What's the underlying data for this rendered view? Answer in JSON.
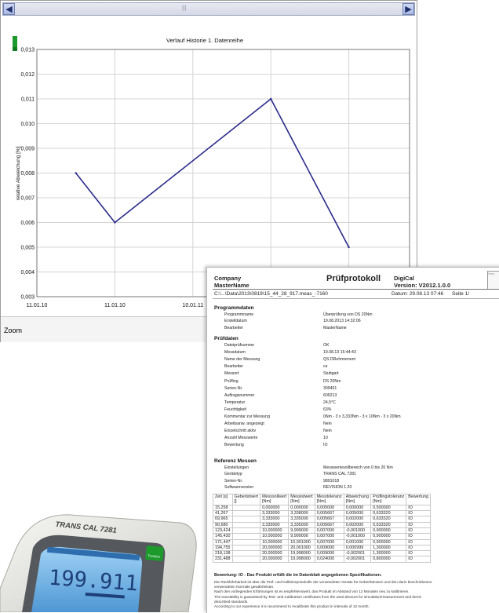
{
  "chart_window": {
    "scroll_grip": "|||",
    "zoom_label": "Zoom",
    "status_indicator_color": "#1c9a2c"
  },
  "chart_data": {
    "type": "line",
    "title": "Verlauf Historie 1. Datenreihe",
    "xlabel": "",
    "ylabel": "relative Abweichung [%]",
    "ylim": [
      0.003,
      0.013
    ],
    "y_ticks": [
      "0,013",
      "0,012",
      "0,011",
      "0,010",
      "0,009",
      "0,008",
      "0,007",
      "0,006",
      "0,005",
      "0,004",
      "0,003"
    ],
    "x_ticks": [
      "11.01.10",
      "11.01.10",
      "10.01.11"
    ],
    "series": [
      {
        "color": "#2a2a8c",
        "points": [
          {
            "x": 0.5,
            "y": 0.008
          },
          {
            "x": 1.0,
            "y": 0.006
          },
          {
            "x": 3.0,
            "y": 0.011
          },
          {
            "x": 4.0,
            "y": 0.005
          }
        ]
      }
    ],
    "grid": true
  },
  "report": {
    "company": "Company",
    "mastername": "MasterName",
    "title": "Prüfprotokoll",
    "digical": "DigiCal",
    "version": "Version: V2012.1.0.0",
    "logo_text": "Vers",
    "path": "C:\\...\\Data\\2013\\0819\\15_44_28_917.meas_-7160",
    "date": "Datum: 29.08.13 07:46",
    "page": "Seite 1/",
    "programmdaten": {
      "title": "Programmdaten",
      "rows": [
        {
          "label": "Programmname",
          "value": "Überprüfung von DS 20Nm"
        },
        {
          "label": "Erstelldatum",
          "value": "19.08.2013 14:32:06"
        },
        {
          "label": "Bearbeiter",
          "value": "MasterName"
        }
      ]
    },
    "pruefdaten": {
      "title": "Prüfdaten",
      "rows": [
        {
          "label": "Dateiprüfsumme",
          "value": "OK"
        },
        {
          "label": "Messdatum",
          "value": "19.08.13 15:44:43"
        },
        {
          "label": "Name der Messung",
          "value": "QS DRehmoment"
        },
        {
          "label": "Bearbeiter",
          "value": "ce"
        },
        {
          "label": "Messort",
          "value": "Stuttgart"
        },
        {
          "label": "Prüfling",
          "value": "DS 20Nm"
        },
        {
          "label": "Serien-Nr.",
          "value": "309451"
        },
        {
          "label": "Auftragsnummer",
          "value": "605213"
        },
        {
          "label": "Temperatur",
          "value": "24,5°C"
        },
        {
          "label": "Feuchtigkeit",
          "value": "63%"
        },
        {
          "label": "Kommentar zur Messung",
          "value": "0Nm - 3 x 3,333Nm - 3 x 10Nm - 3 x 20Nm"
        },
        {
          "label": "Arbeitsanw. angezeigt",
          "value": "Nein"
        },
        {
          "label": "Einzelschritt aktiv",
          "value": "Nein"
        },
        {
          "label": "Anzahl Messwerte",
          "value": "10"
        },
        {
          "label": "Bewertung",
          "value": "IO"
        }
      ]
    },
    "referenz": {
      "title": "Referenz Messen",
      "rows": [
        {
          "label": "Einstellungen",
          "value": "Messwertesollbereich von 0 bis 20 Nm"
        },
        {
          "label": "Gerätetyp",
          "value": "TRANS CAL 7281"
        },
        {
          "label": "Serien-Nr.",
          "value": "9891018"
        },
        {
          "label": "Softwareversion",
          "value": "REVISION 1.20"
        }
      ]
    },
    "table": {
      "headers": [
        [
          "Zeit [s]",
          ""
        ],
        [
          "Geberistwert",
          "[]"
        ],
        [
          "Messsollwert",
          "[Nm]"
        ],
        [
          "Messistwert",
          "[Nm]"
        ],
        [
          "Messtoleranz",
          "[Nm]"
        ],
        [
          "Abweichung",
          "[Nm]"
        ],
        [
          "Prüflingstoleranz",
          "[Nm]"
        ],
        [
          "Bewertung",
          ""
        ]
      ],
      "rows": [
        [
          "15,258",
          "",
          "0,000000",
          "0,000000",
          "0,005000",
          "0,000000",
          "0,500000",
          "IO"
        ],
        [
          "41,267",
          "",
          "3,333000",
          "3,338000",
          "0,005667",
          "0,005000",
          "0,633320",
          "IO"
        ],
        [
          "69,965",
          "",
          "3,333000",
          "3,335000",
          "0,005667",
          "0,002000",
          "0,633320",
          "IO"
        ],
        [
          "90,680",
          "",
          "3,333000",
          "3,335000",
          "0,005667",
          "0,002000",
          "0,633320",
          "IO"
        ],
        [
          "123,424",
          "",
          "10,000000",
          "9,999000",
          "0,007000",
          "-0,001000",
          "0,900000",
          "IO"
        ],
        [
          "145,430",
          "",
          "10,000000",
          "9,999000",
          "0,007000",
          "-0,001000",
          "0,900000",
          "IO"
        ],
        [
          "171,447",
          "",
          "10,000000",
          "10,001000",
          "0,007000",
          "0,001000",
          "0,900000",
          "IO"
        ],
        [
          "194,755",
          "",
          "20,000000",
          "20,001000",
          "0,009000",
          "0,000999",
          "1,300000",
          "IO"
        ],
        [
          "218,138",
          "",
          "20,000000",
          "19,998000",
          "0,009000",
          "-0,002001",
          "1,300000",
          "IO"
        ],
        [
          "231,488",
          "",
          "20,000000",
          "19,998000",
          "0,024000",
          "-0,002001",
          "0,800000",
          "IO"
        ]
      ]
    },
    "verdict": "Bewertung: IO - Das Produkt erfüllt die im Datenblatt angegebenen Spezifikationen.",
    "notes": [
      "Die Rückführbarkeit ist über die Prüf- und Kalibrierprotokolle der verwendeten Geräte für Geber/Messen und den darin beschriebenen",
      "verwendeten Normale gewährleistet.",
      "Nach den vorliegenden Erfahrungen ist es empfehlenswert, das Produkt im Abstand von 12 Monaten neu zu kalibrieren.",
      "The traceability is guaranteed by Test- and Calibration certificates from the used devices for simulation/measurement and therin",
      "described standards.",
      "According to our experience it is recommend to recalibrate this product in intervals of 12 month."
    ]
  },
  "device": {
    "brand": "TRANS CAL  7281",
    "display_value": "199.911",
    "key_label": "Funktion",
    "body_color": "#e9e9e6",
    "screen_color": "#6fb3e6"
  }
}
